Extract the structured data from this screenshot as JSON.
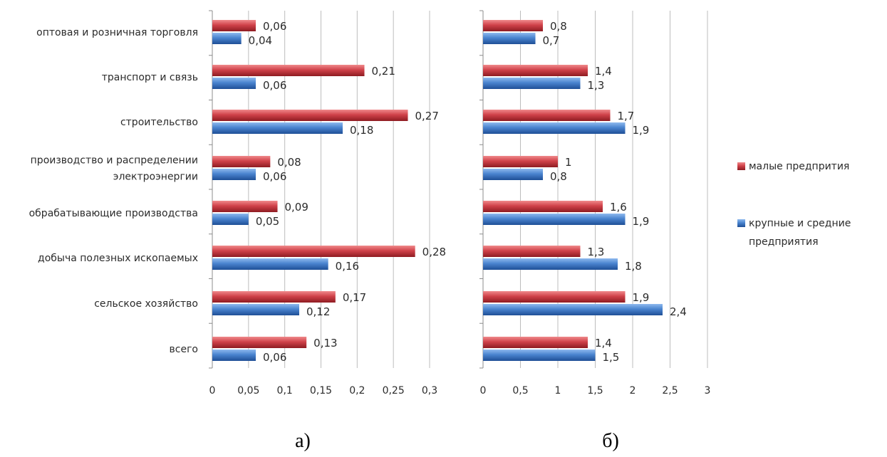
{
  "chart_data": [
    {
      "type": "bar",
      "orientation": "horizontal",
      "caption": "а)",
      "categories": [
        "оптовая и розничная торговля",
        "транспорт и связь",
        "строительство",
        "производство и распределении электроэнергии",
        "обрабатывающие производства",
        "добыча полезных ископаемых",
        "сельское хозяйство",
        "всего"
      ],
      "category_lines": [
        [
          "оптовая и розничная  торговля"
        ],
        [
          "транспорт и связь"
        ],
        [
          "строительство"
        ],
        [
          "производство и распределении",
          "электроэнергии"
        ],
        [
          "обрабатывающие  производства"
        ],
        [
          "добыча полезных ископаемых"
        ],
        [
          "сельское хозяйство"
        ],
        [
          "всего"
        ]
      ],
      "series": [
        {
          "name": "малые предприятия",
          "values": [
            0.06,
            0.21,
            0.27,
            0.08,
            0.09,
            0.28,
            0.17,
            0.13
          ]
        },
        {
          "name": "крупные и средние предприятия",
          "values": [
            0.04,
            0.06,
            0.18,
            0.06,
            0.05,
            0.16,
            0.12,
            0.06
          ]
        }
      ],
      "value_labels": [
        [
          "0,06",
          "0,21",
          "0,27",
          "0,08",
          "0,09",
          "0,28",
          "0,17",
          "0,13"
        ],
        [
          "0,04",
          "0,06",
          "0,18",
          "0,06",
          "0,05",
          "0,16",
          "0,12",
          "0,06"
        ]
      ],
      "xlim": [
        0,
        0.3
      ],
      "ticks": [
        0,
        0.05,
        0.1,
        0.15,
        0.2,
        0.25,
        0.3
      ],
      "tick_labels": [
        "0",
        "0,05",
        "0,1",
        "0,15",
        "0,2",
        "0,25",
        "0,3"
      ],
      "grid": true
    },
    {
      "type": "bar",
      "orientation": "horizontal",
      "caption": "б)",
      "series": [
        {
          "name": "малые предприятия",
          "values": [
            0.8,
            1.4,
            1.7,
            1,
            1.6,
            1.3,
            1.9,
            1.4
          ]
        },
        {
          "name": "крупные и средние предприятия",
          "values": [
            0.7,
            1.3,
            1.9,
            0.8,
            1.9,
            1.8,
            2.4,
            1.5
          ]
        }
      ],
      "value_labels": [
        [
          "0,8",
          "1,4",
          "1,7",
          "1",
          "1,6",
          "1,3",
          "1,9",
          "1,4"
        ],
        [
          "0,7",
          "1,3",
          "1,9",
          "0,8",
          "1,9",
          "1,8",
          "2,4",
          "1,5"
        ]
      ],
      "xlim": [
        0,
        3
      ],
      "ticks": [
        0,
        0.5,
        1,
        1.5,
        2,
        2.5,
        3
      ],
      "tick_labels": [
        "0",
        "0,5",
        "1",
        "1,5",
        "2",
        "2,5",
        "3"
      ],
      "grid": true
    }
  ],
  "legend": {
    "placement": "right",
    "items": [
      {
        "lines": [
          "малые предпрития"
        ],
        "color": "#c0363a"
      },
      {
        "lines": [
          "крупные и средние",
          "предприятия"
        ],
        "color": "#3f79c4"
      }
    ]
  },
  "colors": {
    "series_small": "#c0363a",
    "series_large": "#3f79c4"
  }
}
